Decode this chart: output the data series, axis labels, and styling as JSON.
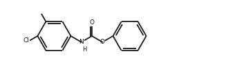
{
  "bg_color": "#ffffff",
  "line_color": "#1a1a1a",
  "lw": 1.3,
  "cl_label": "Cl",
  "nh_label": "N",
  "h_label": "H",
  "o_label": "O",
  "o2_label": "O",
  "figsize": [
    3.3,
    1.04
  ],
  "dpi": 100,
  "xlim": [
    -0.5,
    9.5
  ],
  "ylim": [
    -1.6,
    1.6
  ]
}
